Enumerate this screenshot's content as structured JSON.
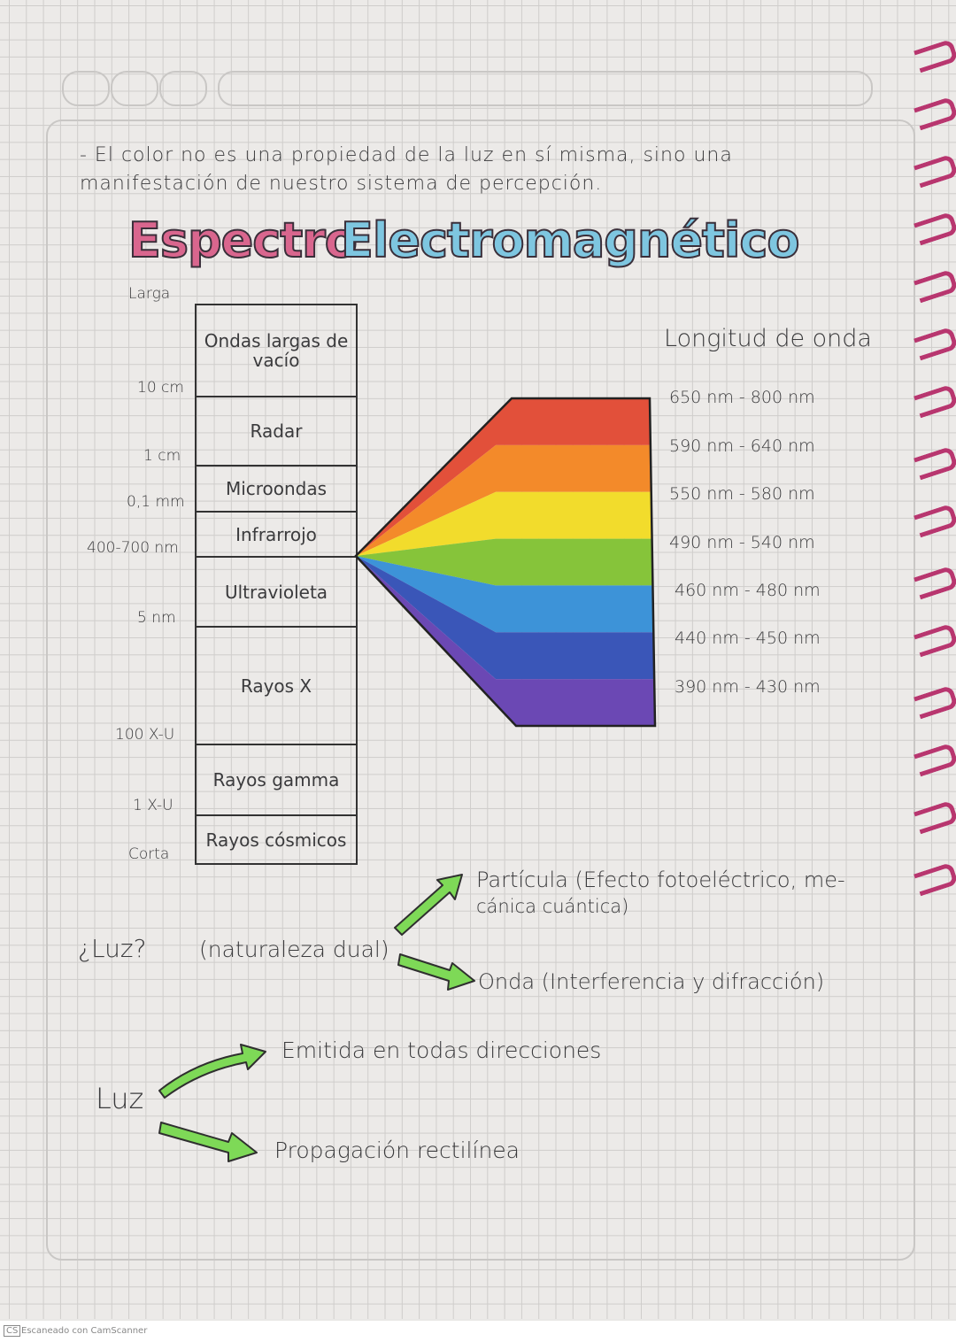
{
  "note": {
    "line1": "- El color no es una propiedad de la luz en sí misma, sino una",
    "line2": "manifestación de nuestro sistema de percepción."
  },
  "title": {
    "word1": "Espectro",
    "word2": "Electromagnético",
    "color1": "#d9668e",
    "color2": "#7ec6e0"
  },
  "spectrum_table": {
    "rows": [
      "Ondas largas de vacío",
      "Radar",
      "Microondas",
      "Infrarrojo",
      "Ultravioleta",
      "Rayos X",
      "Rayos gamma",
      "Rayos cósmicos"
    ],
    "scale_labels": [
      "Larga",
      "10 cm",
      "1 cm",
      "0,1 mm",
      "400-700 nm",
      "5 nm",
      "100 X-U",
      "1 X-U",
      "Corta"
    ]
  },
  "visible": {
    "header": "Longitud de onda",
    "bands": [
      {
        "range": "650 nm - 800 nm",
        "color": "#e2503a"
      },
      {
        "range": "590 nm - 640 nm",
        "color": "#f38a2a"
      },
      {
        "range": "550 nm - 580 nm",
        "color": "#f2dc2c"
      },
      {
        "range": "490 nm - 540 nm",
        "color": "#86c43a"
      },
      {
        "range": "460 nm - 480 nm",
        "color": "#3d93d8"
      },
      {
        "range": "440 nm - 450 nm",
        "color": "#3a56b8"
      },
      {
        "range": "390 nm - 430 nm",
        "color": "#6b48b4"
      }
    ]
  },
  "dual": {
    "question": "¿Luz?",
    "nature": "(naturaleza dual)",
    "particle_line1": "Partícula (Efecto fotoeléctrico, me-",
    "particle_line2": "cánica cuántica)",
    "wave": "Onda (Interferencia y difracción)"
  },
  "light": {
    "label": "Luz",
    "emitted": "Emitida en todas direcciones",
    "propagation": "Propagación rectilínea"
  },
  "arrow_color": "#7ed957",
  "footer": {
    "logo": "CS",
    "text": "Escaneado con CamScanner"
  }
}
